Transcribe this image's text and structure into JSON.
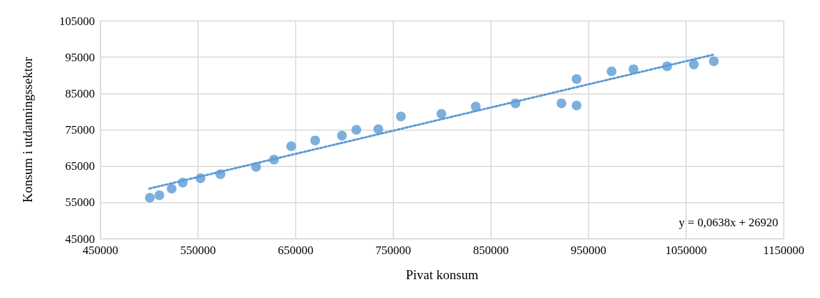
{
  "chart_data": {
    "type": "scatter",
    "xlabel": "Pivat konsum",
    "ylabel": "Konsum i utdanningssektor",
    "xlim": [
      450000,
      1150000
    ],
    "xticks": [
      450000,
      550000,
      650000,
      750000,
      850000,
      950000,
      1050000,
      1150000
    ],
    "ylim": [
      45000,
      105000
    ],
    "yticks": [
      45000,
      55000,
      65000,
      75000,
      85000,
      95000,
      105000
    ],
    "grid": true,
    "marker": "circle",
    "series": [
      {
        "color": "#5b9bd5",
        "x": [
          500600,
          510400,
          523000,
          534300,
          552600,
          573000,
          609500,
          627800,
          645400,
          670000,
          697400,
          712200,
          734700,
          757800,
          799300,
          834500,
          875200,
          922300,
          937800,
          937800,
          973600,
          996100,
          1030500,
          1057900,
          1078400
        ],
        "values": [
          56300,
          57000,
          58800,
          60500,
          61700,
          62800,
          64800,
          66800,
          70500,
          72100,
          73400,
          75000,
          75200,
          78700,
          79400,
          81400,
          82300,
          82300,
          81700,
          89000,
          91100,
          91700,
          92500,
          93000,
          93900
        ]
      },
      {
        "type": "line",
        "color": "#5b9bd5",
        "line_style": "dotted",
        "marker": "none",
        "x": [
          500000,
          1078000
        ],
        "values": [
          58820,
          95700
        ]
      }
    ],
    "annotations": [
      "y = 0,0638x + 26920"
    ]
  }
}
